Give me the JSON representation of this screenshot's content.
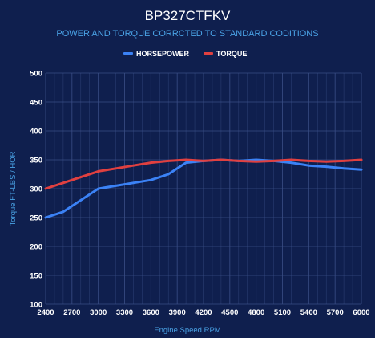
{
  "chart_data": {
    "type": "line",
    "title": "BP327CTFKV",
    "subtitle": "POWER AND TORQUE CORRCTED TO STANDARD CODITIONS",
    "xlabel": "Engine Speed RPM",
    "ylabel": "Torque FT-LBS / HOR",
    "xlim": [
      2400,
      6000
    ],
    "ylim": [
      100,
      500
    ],
    "xticks": [
      2400,
      2700,
      3000,
      3300,
      3600,
      3900,
      4200,
      4500,
      4800,
      5100,
      5400,
      5700,
      6000
    ],
    "yticks": [
      100,
      150,
      200,
      250,
      300,
      350,
      400,
      450,
      500
    ],
    "legend_position": "top-center",
    "grid": true,
    "series": [
      {
        "name": "HORSEPOWER",
        "color": "#3b82f6",
        "x": [
          2400,
          2600,
          2800,
          3000,
          3200,
          3400,
          3600,
          3800,
          4000,
          4200,
          4400,
          4600,
          4800,
          5000,
          5200,
          5400,
          5600,
          5800,
          6000
        ],
        "y": [
          250,
          260,
          280,
          300,
          305,
          310,
          315,
          325,
          345,
          348,
          350,
          348,
          350,
          348,
          345,
          340,
          338,
          335,
          333
        ]
      },
      {
        "name": "TORQUE",
        "color": "#e04040",
        "x": [
          2400,
          2600,
          2800,
          3000,
          3200,
          3400,
          3600,
          3800,
          4000,
          4200,
          4400,
          4600,
          4800,
          5000,
          5200,
          5400,
          5600,
          5800,
          6000
        ],
        "y": [
          300,
          310,
          320,
          330,
          335,
          340,
          345,
          348,
          350,
          348,
          350,
          348,
          347,
          348,
          350,
          348,
          347,
          348,
          350
        ]
      }
    ]
  }
}
